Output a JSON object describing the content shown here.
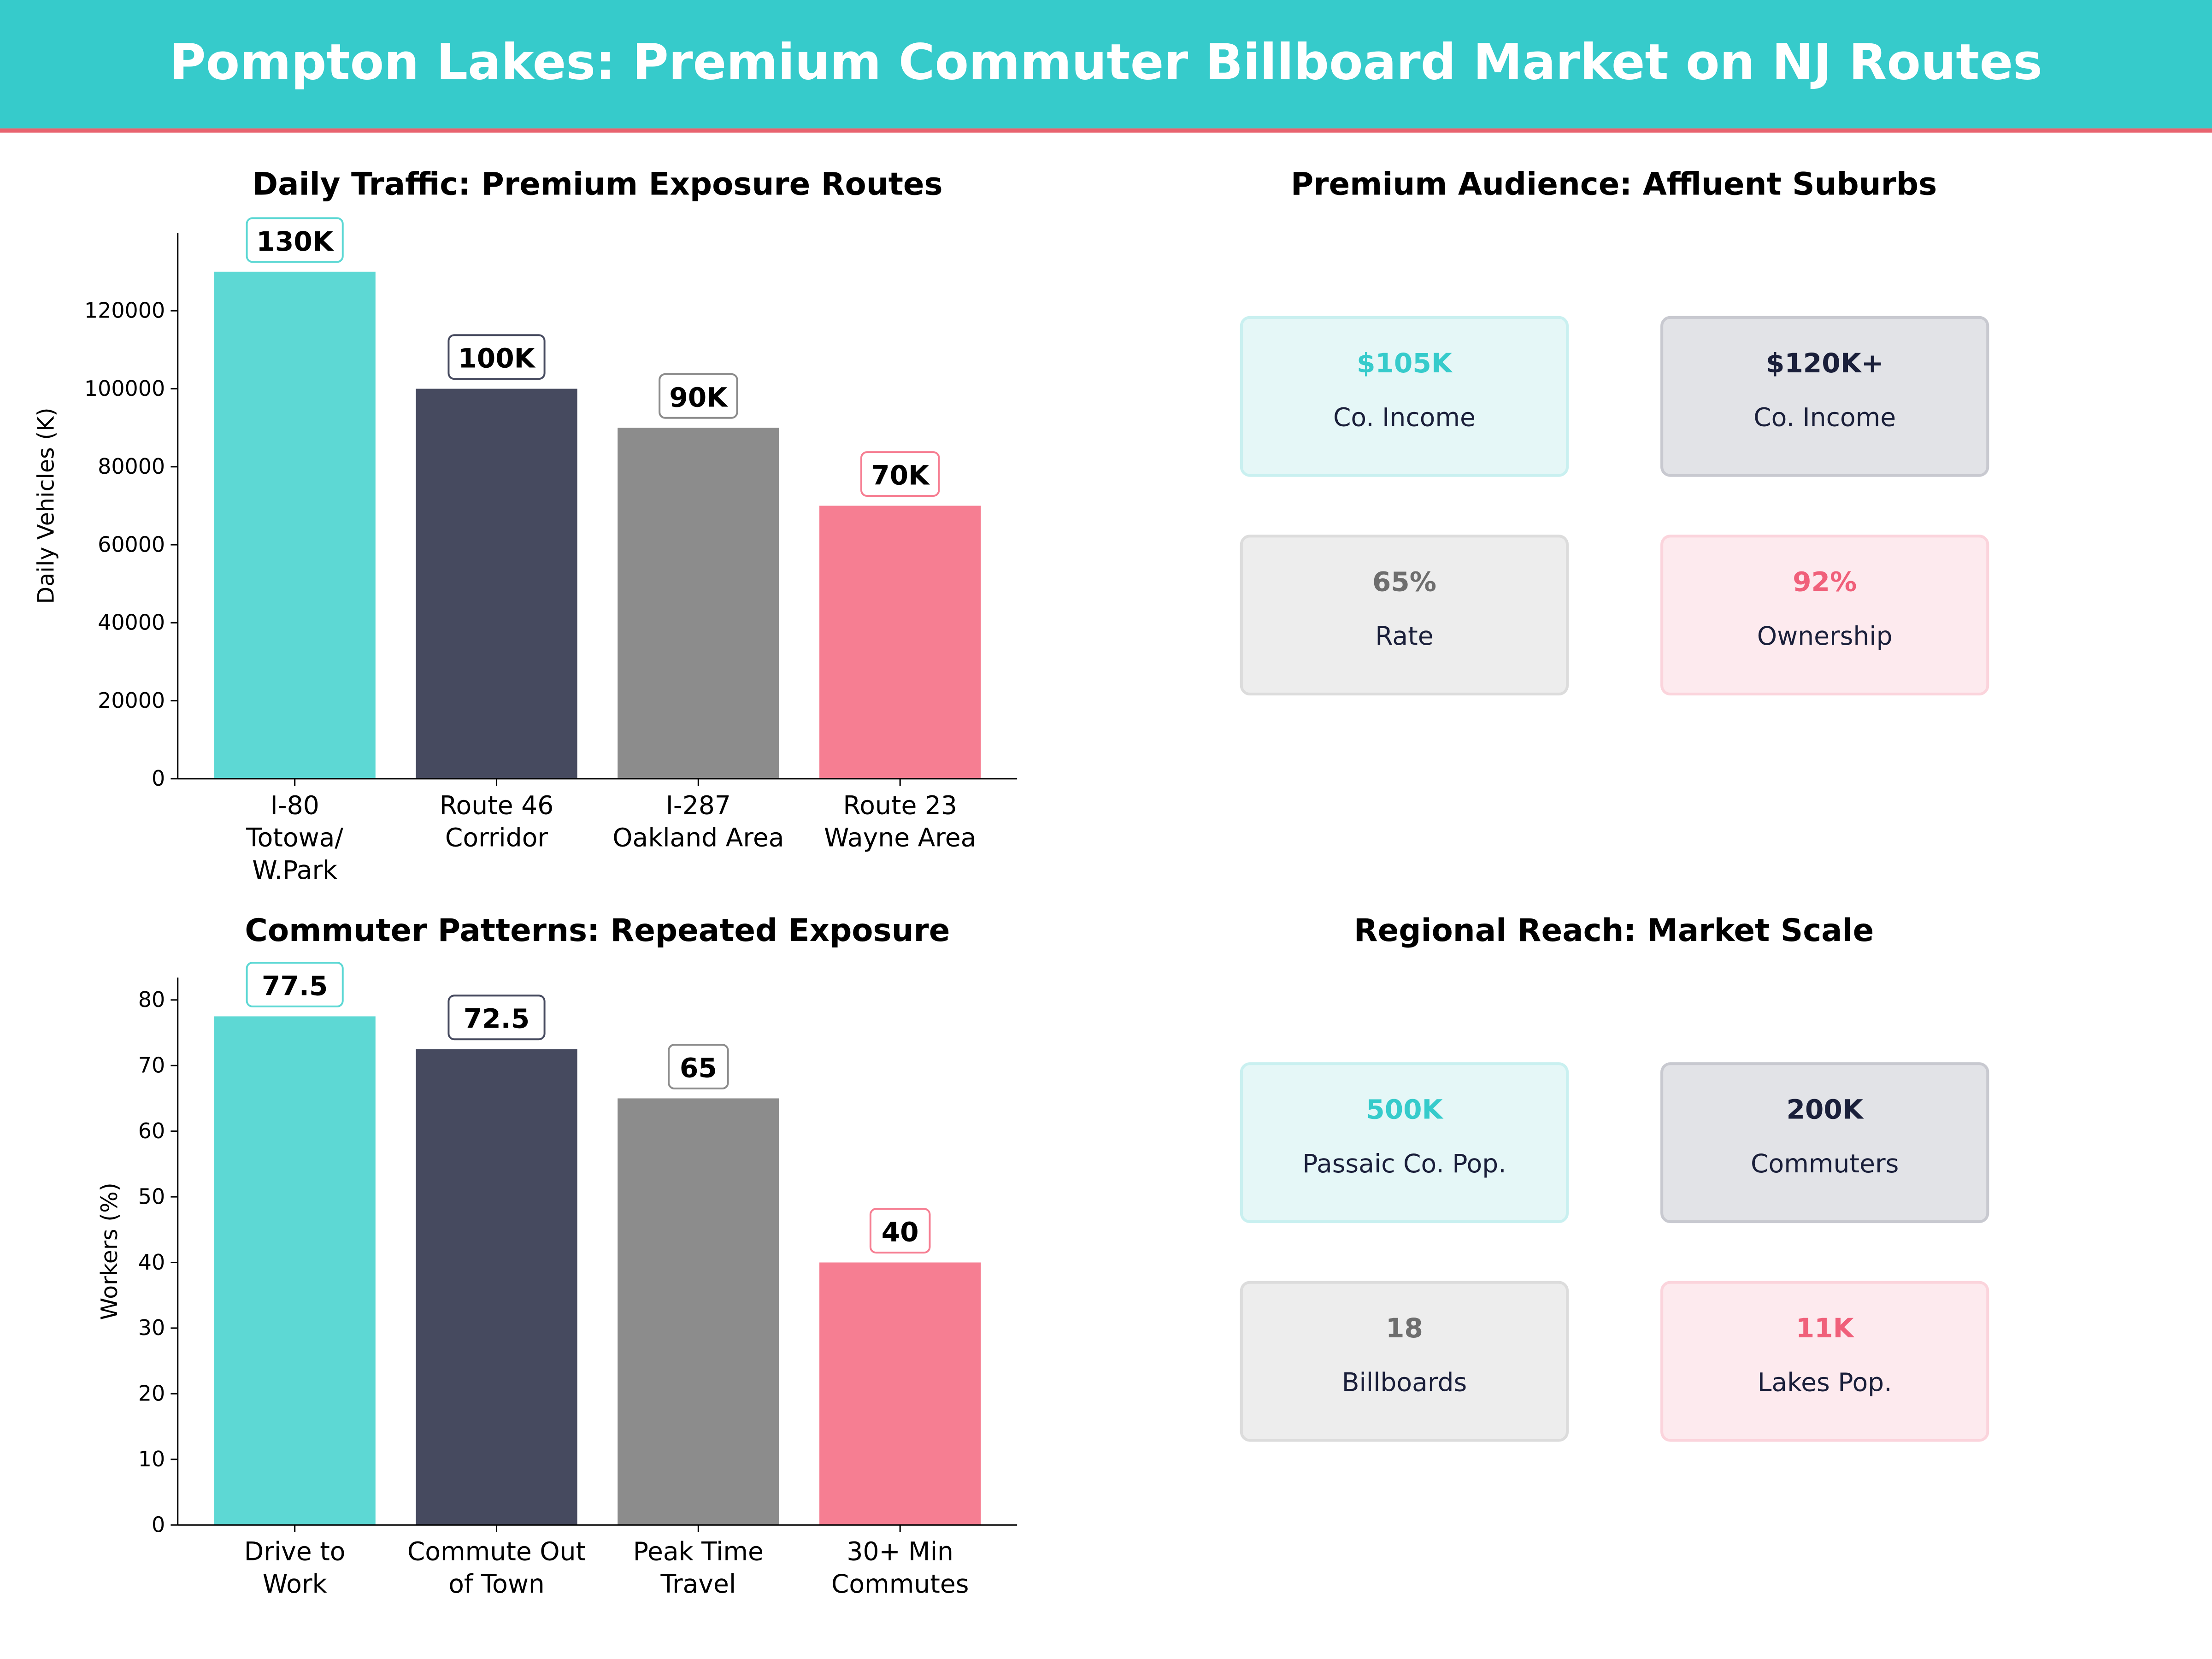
{
  "header": {
    "title": "Pompton Lakes: Premium Commuter Billboard Market on NJ Routes"
  },
  "colors": {
    "header_bg": "#36cbcb",
    "header_rule": "#e8636f",
    "teal": "#5dd8d4",
    "navy": "#464a5f",
    "gray": "#8c8c8c",
    "pink": "#f67e92"
  },
  "chart_data": [
    {
      "type": "bar",
      "title": "Daily Traffic: Premium Exposure Routes",
      "xlabel": "",
      "ylabel": "Daily Vehicles (K)",
      "categories": [
        "I-80\nTotowa/\nW.Park",
        "Route 46\nCorridor",
        "I-287\nOakland Area",
        "Route 23\nWayne Area"
      ],
      "values": [
        130000,
        100000,
        90000,
        70000
      ],
      "data_labels": [
        "130K",
        "100K",
        "90K",
        "70K"
      ],
      "bar_colors": [
        "#5dd8d4",
        "#464a5f",
        "#8c8c8c",
        "#f67e92"
      ],
      "yticks": [
        0,
        20000,
        40000,
        60000,
        80000,
        100000,
        120000
      ],
      "ylim": [
        0,
        140000
      ],
      "grid": false
    },
    {
      "type": "bar",
      "title": "Commuter Patterns: Repeated Exposure",
      "xlabel": "",
      "ylabel": "Workers (%)",
      "categories": [
        "Drive to\nWork",
        "Commute Out\nof Town",
        "Peak Time\nTravel",
        "30+ Min\nCommutes"
      ],
      "values": [
        77.5,
        72.5,
        65,
        40
      ],
      "data_labels": [
        "77.5",
        "72.5",
        "65",
        "40"
      ],
      "bar_colors": [
        "#5dd8d4",
        "#464a5f",
        "#8c8c8c",
        "#f67e92"
      ],
      "yticks": [
        0,
        10,
        20,
        30,
        40,
        50,
        60,
        70,
        80
      ],
      "ylim": [
        0,
        83.4
      ],
      "grid": false
    }
  ],
  "panels": [
    {
      "title": "Premium Audience: Affluent Suburbs",
      "cards": [
        {
          "value": "$105K",
          "label": "Co. Income",
          "theme": "teal"
        },
        {
          "value": "$120K+",
          "label": "Co. Income",
          "theme": "navy"
        },
        {
          "value": "65%",
          "label": "Rate",
          "theme": "gray"
        },
        {
          "value": "92%",
          "label": "Ownership",
          "theme": "pink"
        }
      ]
    },
    {
      "title": "Regional Reach: Market Scale",
      "cards": [
        {
          "value": "500K",
          "label": "Passaic Co. Pop.",
          "theme": "teal"
        },
        {
          "value": "200K",
          "label": "Commuters",
          "theme": "navy"
        },
        {
          "value": "18",
          "label": "Billboards",
          "theme": "gray"
        },
        {
          "value": "11K",
          "label": "Lakes Pop.",
          "theme": "pink"
        }
      ]
    }
  ]
}
